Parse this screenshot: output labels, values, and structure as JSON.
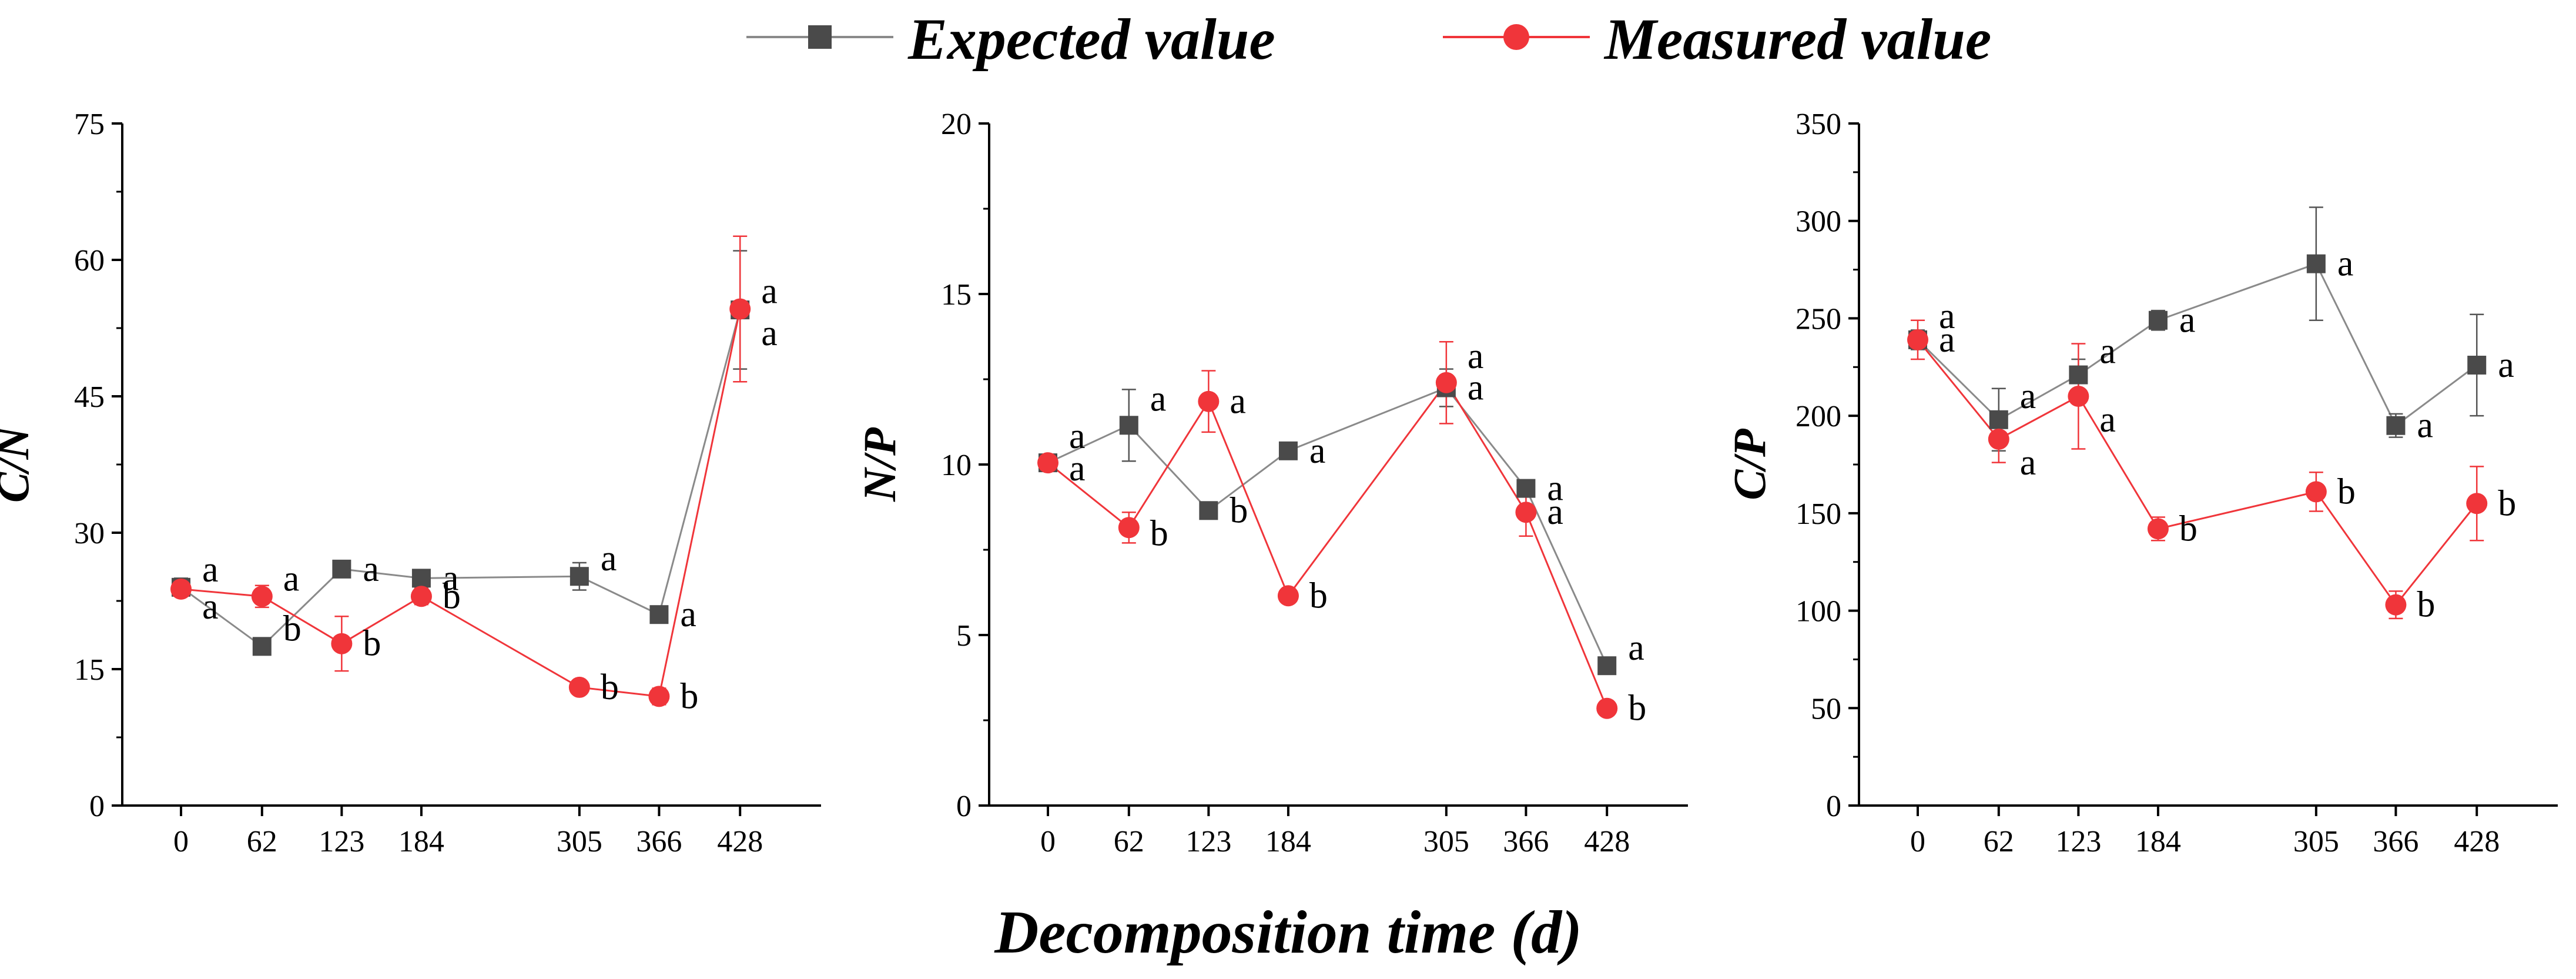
{
  "legend": {
    "expected_label": "Expected value",
    "measured_label": "Measured value"
  },
  "xlabel": "Decomposition time (d)",
  "colors": {
    "expected": "#4a4a4a",
    "expected_line": "#8a8a8a",
    "measured": "#f0353a",
    "measured_line": "#f0353a",
    "axis": "#000000"
  },
  "chart_data": [
    {
      "type": "line",
      "ylabel": "C/N",
      "x": [
        0,
        62,
        123,
        184,
        305,
        366,
        428
      ],
      "x_ticks": [
        "0",
        "62",
        "123",
        "184",
        "305",
        "366",
        "428"
      ],
      "xlim": [
        -45,
        490
      ],
      "ylim": [
        0,
        75
      ],
      "y_ticks": [
        0,
        15,
        30,
        45,
        60,
        75
      ],
      "series": [
        {
          "name": "Expected value",
          "values": [
            24.0,
            17.5,
            26.0,
            25.0,
            25.2,
            21.0,
            54.5
          ],
          "errors": [
            1.0,
            0.6,
            0.8,
            0.5,
            1.5,
            0.5,
            6.5
          ],
          "labels": [
            "a",
            "b",
            "a",
            "a",
            "a",
            "a",
            "a"
          ]
        },
        {
          "name": "Measured value",
          "values": [
            23.8,
            23.0,
            17.8,
            23.0,
            13.0,
            12.0,
            54.6
          ],
          "errors": [
            0.6,
            1.2,
            3.0,
            0.9,
            0.4,
            0.9,
            8.0
          ],
          "labels": [
            "a",
            "a",
            "b",
            "b",
            "b",
            "b",
            "a"
          ]
        }
      ]
    },
    {
      "type": "line",
      "ylabel": "N/P",
      "x": [
        0,
        62,
        123,
        184,
        305,
        366,
        428
      ],
      "x_ticks": [
        "0",
        "62",
        "123",
        "184",
        "305",
        "366",
        "428"
      ],
      "xlim": [
        -45,
        490
      ],
      "ylim": [
        0,
        20
      ],
      "y_ticks": [
        0,
        5,
        10,
        15,
        20
      ],
      "series": [
        {
          "name": "Expected value",
          "values": [
            10.05,
            11.15,
            8.65,
            10.4,
            12.25,
            9.3,
            4.1
          ],
          "errors": [
            0.15,
            1.05,
            0.15,
            0.15,
            0.55,
            0.15,
            0.1
          ],
          "labels": [
            "a",
            "a",
            "b",
            "a",
            "a",
            "a",
            "a"
          ]
        },
        {
          "name": "Measured value",
          "values": [
            10.05,
            8.15,
            11.85,
            6.15,
            12.4,
            8.6,
            2.85
          ],
          "errors": [
            0.15,
            0.45,
            0.9,
            0.1,
            1.2,
            0.7,
            0.1
          ],
          "labels": [
            "a",
            "b",
            "a",
            "b",
            "a",
            "a",
            "b"
          ]
        }
      ]
    },
    {
      "type": "line",
      "ylabel": "C/P",
      "x": [
        0,
        62,
        123,
        184,
        305,
        366,
        428
      ],
      "x_ticks": [
        "0",
        "62",
        "123",
        "184",
        "305",
        "366",
        "428"
      ],
      "xlim": [
        -45,
        490
      ],
      "ylim": [
        0,
        350
      ],
      "y_ticks": [
        0,
        50,
        100,
        150,
        200,
        250,
        300,
        350
      ],
      "series": [
        {
          "name": "Expected value",
          "values": [
            239,
            198,
            221,
            249,
            278,
            195,
            226
          ],
          "errors": [
            5,
            16,
            8,
            5,
            29,
            6,
            26
          ],
          "labels": [
            "a",
            "a",
            "a",
            "a",
            "a",
            "a",
            "a"
          ]
        },
        {
          "name": "Measured value",
          "values": [
            239,
            188,
            210,
            142,
            161,
            103,
            155
          ],
          "errors": [
            10,
            12,
            27,
            6,
            10,
            7,
            19
          ],
          "labels": [
            "a",
            "a",
            "a",
            "b",
            "b",
            "b",
            "b"
          ]
        }
      ]
    }
  ]
}
